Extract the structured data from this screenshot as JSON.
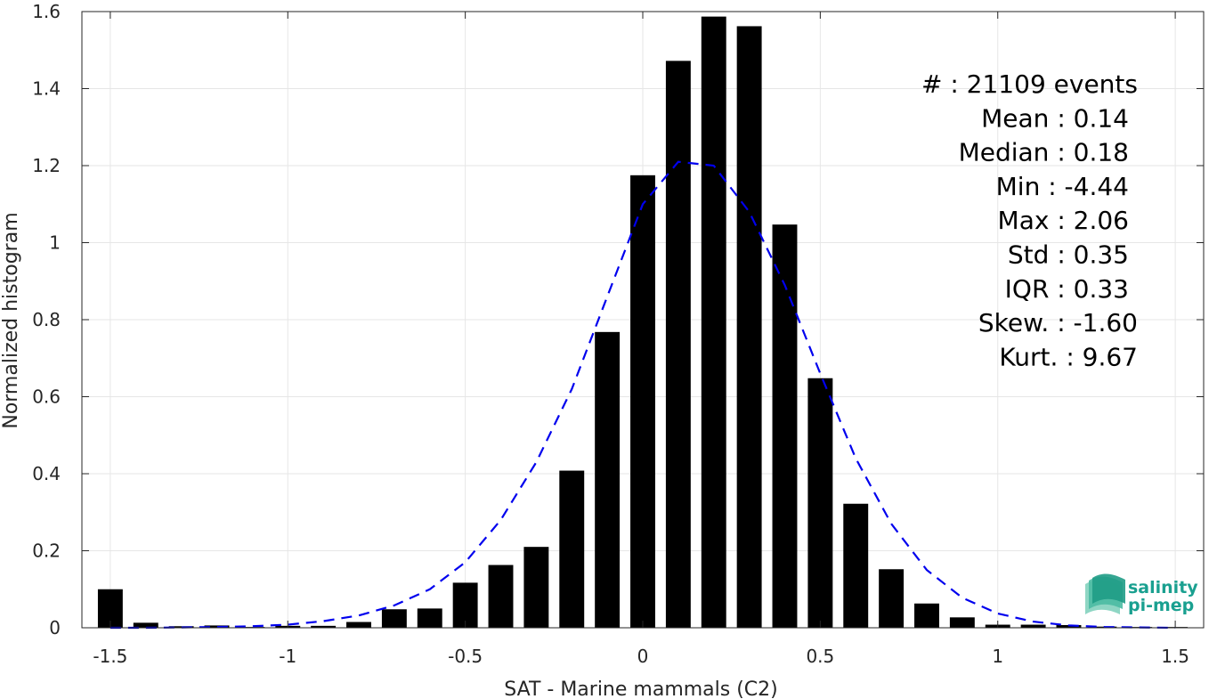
{
  "chart_data": {
    "type": "bar",
    "xlabel": "SAT - Marine mammals (C2)",
    "ylabel": "Normalized histogram",
    "xlim": [
      -1.58,
      1.58
    ],
    "ylim": [
      0,
      1.6
    ],
    "x_ticks": [
      -1.5,
      -1,
      -0.5,
      0,
      0.5,
      1,
      1.5
    ],
    "x_tick_labels": [
      "-1.5",
      "-1",
      "-0.5",
      "0",
      "0.5",
      "1",
      "1.5"
    ],
    "y_ticks": [
      0,
      0.2,
      0.4,
      0.6,
      0.8,
      1,
      1.2,
      1.4,
      1.6
    ],
    "y_tick_labels": [
      "0",
      "0.2",
      "0.4",
      "0.6",
      "0.8",
      "1",
      "1.2",
      "1.4",
      "1.6"
    ],
    "grid": true,
    "bar_width": 0.07,
    "bar_color": "#000000",
    "bars": {
      "x": [
        -1.5,
        -1.4,
        -1.3,
        -1.2,
        -1.1,
        -1.0,
        -0.9,
        -0.8,
        -0.7,
        -0.6,
        -0.5,
        -0.4,
        -0.3,
        -0.2,
        -0.1,
        0.0,
        0.1,
        0.2,
        0.3,
        0.4,
        0.5,
        0.6,
        0.7,
        0.8,
        0.9,
        1.0,
        1.1,
        1.2,
        1.3,
        1.4,
        1.5
      ],
      "values": [
        0.1,
        0.013,
        0.004,
        0.006,
        0.002,
        0.005,
        0.005,
        0.015,
        0.048,
        0.05,
        0.117,
        0.163,
        0.21,
        0.408,
        0.768,
        1.175,
        1.472,
        1.587,
        1.562,
        1.047,
        0.648,
        0.322,
        0.152,
        0.063,
        0.027,
        0.008,
        0.008,
        0.007,
        0.003,
        0.002,
        0.002
      ]
    },
    "fit_curve": {
      "style": "dashed",
      "color": "#0000ee",
      "x": [
        -1.5,
        -1.4,
        -1.3,
        -1.2,
        -1.1,
        -1.0,
        -0.9,
        -0.8,
        -0.7,
        -0.6,
        -0.5,
        -0.4,
        -0.3,
        -0.2,
        -0.1,
        0.0,
        0.1,
        0.2,
        0.3,
        0.4,
        0.5,
        0.6,
        0.7,
        0.8,
        0.9,
        1.0,
        1.1,
        1.2,
        1.3,
        1.4,
        1.5
      ],
      "values": [
        0.0,
        0.0,
        0.001,
        0.002,
        0.004,
        0.008,
        0.017,
        0.032,
        0.058,
        0.1,
        0.17,
        0.28,
        0.43,
        0.62,
        0.86,
        1.1,
        1.21,
        1.2,
        1.08,
        0.89,
        0.66,
        0.44,
        0.27,
        0.15,
        0.078,
        0.037,
        0.016,
        0.006,
        0.002,
        0.001,
        0.0
      ]
    },
    "annotations": [
      "#  : 21109 events",
      "Mean : 0.14",
      "Median : 0.18",
      "Min : -4.44",
      "Max : 2.06",
      "Std : 0.35",
      "IQR : 0.33",
      "Skew. : -1.60",
      "Kurt. : 9.67"
    ]
  },
  "logo": {
    "line1": "salinity",
    "line2": "pi-mep",
    "color": "#1aa090"
  }
}
